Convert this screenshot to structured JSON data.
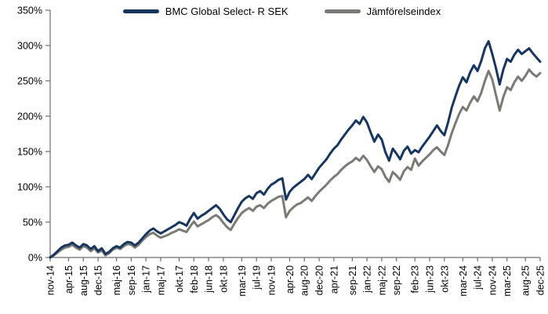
{
  "chart_data": {
    "type": "line",
    "title": "",
    "background_color": "#ffffff",
    "axis_color": "#6e6e6e",
    "label_color": "#000000",
    "legend_position": "top-center",
    "y_axis": {
      "min": 0,
      "max": 350,
      "step": 50,
      "tick_labels": [
        "0%",
        "50%",
        "100%",
        "150%",
        "200%",
        "250%",
        "300%",
        "350%"
      ]
    },
    "x_axis": {
      "months_total": 133,
      "tick_labels": [
        "nov-14",
        "apr-15",
        "aug-15",
        "dec-15",
        "maj-16",
        "sep-16",
        "jan-17",
        "maj-17",
        "okt-17",
        "feb-18",
        "jun-18",
        "okt-18",
        "mar-19",
        "jul-19",
        "nov-19",
        "apr-20",
        "aug-20",
        "dec-20",
        "apr-21",
        "sep-21",
        "jan-22",
        "maj-22",
        "sep-22",
        "feb-23",
        "jun-23",
        "okt-23",
        "mar-24",
        "jul-24",
        "nov-24",
        "mar-25",
        "aug-25",
        "dec-25"
      ],
      "tick_month_indices": [
        0,
        5,
        9,
        13,
        18,
        22,
        26,
        30,
        35,
        39,
        43,
        47,
        52,
        56,
        60,
        65,
        69,
        73,
        77,
        82,
        86,
        90,
        94,
        99,
        103,
        107,
        112,
        116,
        120,
        124,
        129,
        133
      ]
    },
    "series": [
      {
        "name": "BMC Global Select- R SEK",
        "color": "#16365f",
        "unit": "%",
        "values": [
          0,
          4,
          9,
          14,
          17,
          18,
          21,
          17,
          14,
          19,
          17,
          12,
          16,
          9,
          13,
          5,
          8,
          13,
          16,
          14,
          19,
          22,
          21,
          17,
          21,
          27,
          33,
          38,
          41,
          37,
          34,
          37,
          40,
          43,
          46,
          50,
          48,
          45,
          55,
          63,
          55,
          59,
          62,
          66,
          70,
          74,
          69,
          61,
          54,
          50,
          60,
          70,
          79,
          84,
          87,
          83,
          91,
          94,
          89,
          97,
          103,
          106,
          110,
          112,
          82,
          93,
          99,
          103,
          107,
          111,
          117,
          111,
          119,
          127,
          133,
          139,
          147,
          154,
          159,
          167,
          174,
          181,
          187,
          194,
          189,
          199,
          191,
          177,
          164,
          174,
          167,
          149,
          137,
          154,
          147,
          139,
          151,
          157,
          147,
          152,
          149,
          157,
          164,
          171,
          179,
          187,
          179,
          173,
          191,
          212,
          228,
          243,
          255,
          248,
          262,
          272,
          264,
          278,
          296,
          306,
          288,
          268,
          245,
          266,
          281,
          277,
          287,
          294,
          288,
          292,
          296,
          289,
          283,
          277
        ]
      },
      {
        "name": "Jämförelseindex",
        "color": "#7b7b76",
        "unit": "%",
        "values": [
          0,
          3,
          7,
          11,
          14,
          15,
          18,
          14,
          11,
          16,
          14,
          9,
          13,
          7,
          10,
          3,
          6,
          11,
          14,
          12,
          16,
          19,
          18,
          14,
          18,
          24,
          29,
          33,
          35,
          31,
          28,
          30,
          32,
          35,
          37,
          40,
          38,
          36,
          44,
          51,
          44,
          47,
          50,
          53,
          57,
          60,
          56,
          49,
          43,
          39,
          48,
          56,
          63,
          67,
          70,
          66,
          72,
          74,
          70,
          76,
          80,
          83,
          86,
          87,
          57,
          66,
          71,
          75,
          77,
          81,
          85,
          80,
          87,
          93,
          98,
          103,
          109,
          114,
          118,
          124,
          129,
          133,
          136,
          141,
          137,
          144,
          138,
          129,
          121,
          129,
          125,
          114,
          107,
          121,
          116,
          110,
          122,
          128,
          124,
          140,
          130,
          136,
          141,
          146,
          152,
          156,
          150,
          145,
          159,
          176,
          190,
          203,
          213,
          208,
          219,
          228,
          221,
          233,
          250,
          264,
          252,
          230,
          208,
          227,
          241,
          237,
          248,
          256,
          250,
          257,
          266,
          260,
          256,
          261
        ]
      }
    ]
  }
}
